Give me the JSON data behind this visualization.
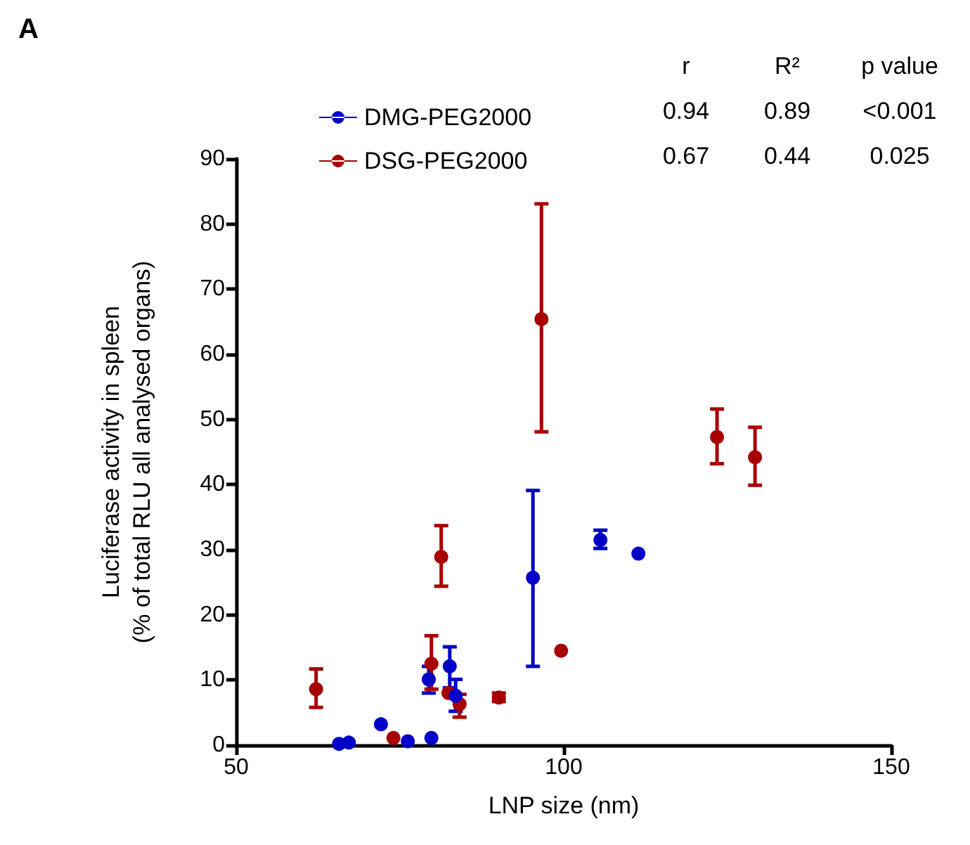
{
  "chart_data": {
    "type": "scatter",
    "title": "A",
    "xlabel": "LNP size (nm)",
    "ylabel": "Luciferase activity in spleen\n(% of total RLU all analysed organs)",
    "xlim": [
      50,
      150
    ],
    "xticks": [
      50,
      100,
      150
    ],
    "ylim": [
      0,
      90
    ],
    "yticks": [
      0,
      10,
      20,
      30,
      40,
      50,
      60,
      70,
      80,
      90
    ],
    "grid": false,
    "legend": "top",
    "marker": "circle",
    "annotations": [
      "r",
      "R²",
      "p value",
      "0.94",
      "0.89",
      "<0.001",
      "0.67",
      "0.44",
      "0.025"
    ],
    "series": [
      {
        "name": "DMG-PEG2000",
        "color": "#0000c8",
        "x": [
          65.7,
          67.2,
          72.1,
          76.2,
          79.8,
          79.4,
          82.6,
          83.5,
          95.3,
          105.6,
          111.4
        ],
        "values": [
          0.2,
          0.4,
          3.2,
          0.6,
          1.1,
          10.1,
          12.1,
          7.6,
          25.7,
          31.5,
          29.4
        ],
        "errors": [
          null,
          null,
          null,
          null,
          null,
          [
            8.0,
            12.1
          ],
          [
            8.8,
            15.1
          ],
          [
            5.2,
            10.1
          ],
          [
            12.1,
            39.1
          ],
          [
            30.2,
            33.0
          ],
          null
        ]
      },
      {
        "name": "DSG-PEG2000",
        "color": "#a80000",
        "x": [
          62.2,
          74.0,
          79.8,
          81.3,
          82.4,
          84.1,
          90.1,
          96.6,
          99.6,
          123.4,
          129.2
        ],
        "values": [
          8.6,
          1.1,
          12.5,
          28.9,
          8.0,
          6.3,
          7.3,
          65.4,
          14.5,
          47.3,
          44.2
        ],
        "errors": [
          [
            5.8,
            11.7
          ],
          null,
          [
            8.6,
            16.8
          ],
          [
            24.4,
            33.7
          ],
          null,
          [
            4.3,
            7.8
          ],
          [
            6.7,
            8.0
          ],
          [
            48.1,
            83.1
          ],
          null,
          [
            43.2,
            51.6
          ],
          [
            39.9,
            48.8
          ]
        ]
      }
    ]
  }
}
